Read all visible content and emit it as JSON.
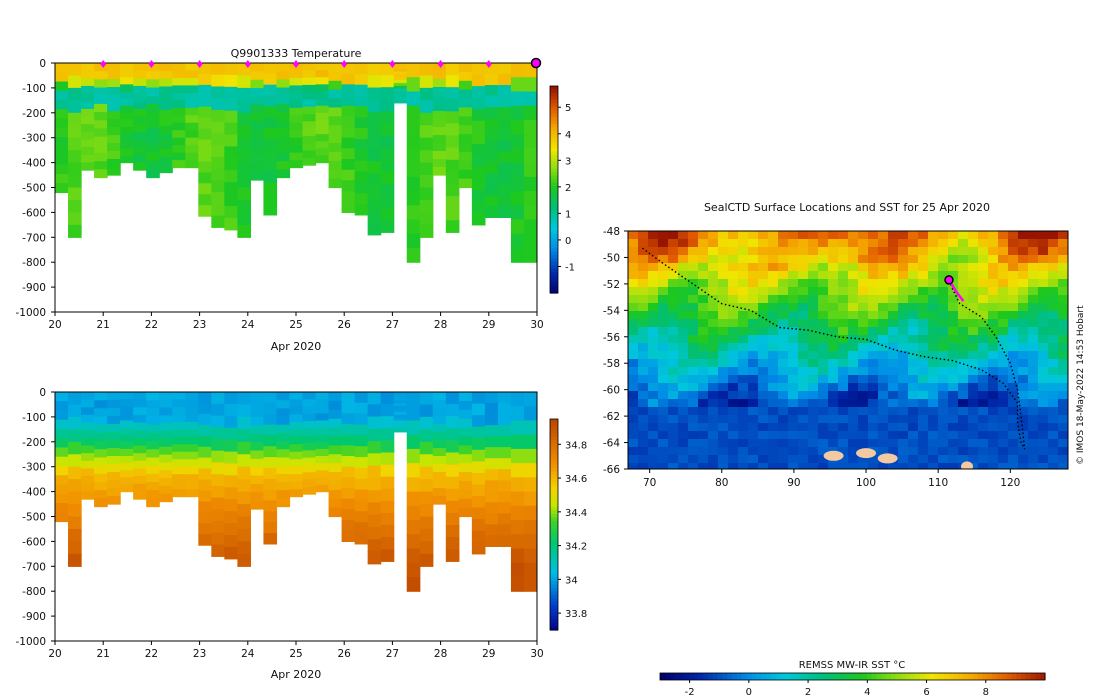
{
  "chart_data": [
    {
      "type": "heatmap",
      "title": "Q9901333  Temperature",
      "xlabel": "Apr 2020",
      "ylabel": "",
      "x_ticks": [
        "20",
        "21",
        "22",
        "23",
        "24",
        "25",
        "26",
        "27",
        "28",
        "29",
        "30"
      ],
      "y_ticks": [
        "0",
        "-100",
        "-200",
        "-300",
        "-400",
        "-500",
        "-600",
        "-700",
        "-800",
        "-900",
        "-1000"
      ],
      "xlim": [
        20,
        30
      ],
      "ylim": [
        -1000,
        0
      ],
      "colorbar_ticks": [
        "5",
        "4",
        "3",
        "2",
        "1",
        "0",
        "-1"
      ],
      "colorbar_range": [
        -2,
        5.8
      ],
      "surface_markers_day": [
        21,
        22,
        23,
        24,
        25,
        26,
        27,
        28,
        29
      ],
      "latest_marker_day": 30,
      "profile_max_depths": [
        -520,
        -700,
        -430,
        -460,
        -450,
        -400,
        -430,
        -460,
        -440,
        -420,
        -420,
        -615,
        -660,
        -670,
        -700,
        -470,
        -610,
        -460,
        -420,
        -410,
        -400,
        -500,
        -600,
        -610,
        -690,
        -680,
        -160,
        -800,
        -700,
        -450,
        -680,
        -500,
        -650,
        -620,
        -620,
        -800,
        -800
      ]
    },
    {
      "type": "heatmap",
      "title": "",
      "xlabel": "Apr 2020",
      "ylabel": "",
      "x_ticks": [
        "20",
        "21",
        "22",
        "23",
        "24",
        "25",
        "26",
        "27",
        "28",
        "29",
        "30"
      ],
      "y_ticks": [
        "0",
        "-100",
        "-200",
        "-300",
        "-400",
        "-500",
        "-600",
        "-700",
        "-800",
        "-900",
        "-1000"
      ],
      "xlim": [
        20,
        30
      ],
      "ylim": [
        -1000,
        0
      ],
      "colorbar_ticks": [
        "34.8",
        "34.6",
        "34.4",
        "34.2",
        "34",
        "33.8"
      ],
      "colorbar_range": [
        33.7,
        34.95
      ]
    },
    {
      "type": "heatmap",
      "title": "SealCTD Surface Locations and SST for 25 Apr 2020",
      "xlabel": "",
      "ylabel": "",
      "x_ticks": [
        "70",
        "80",
        "90",
        "100",
        "110",
        "120"
      ],
      "y_ticks": [
        "-48",
        "-50",
        "-52",
        "-54",
        "-56",
        "-58",
        "-60",
        "-62",
        "-64",
        "-66"
      ],
      "xlim": [
        67,
        128
      ],
      "ylim": [
        -66,
        -48
      ],
      "colorbar_label": "REMSS MW-IR SST °C",
      "colorbar_ticks": [
        "-2",
        "0",
        "2",
        "4",
        "6",
        "8"
      ],
      "colorbar_range": [
        -3,
        10
      ],
      "track_lonlat": [
        [
          69,
          -49.3
        ],
        [
          72,
          -50.5
        ],
        [
          76,
          -52
        ],
        [
          80,
          -53.5
        ],
        [
          84,
          -54
        ],
        [
          88,
          -55.3
        ],
        [
          92,
          -55.5
        ],
        [
          96,
          -56
        ],
        [
          100,
          -56.2
        ],
        [
          104,
          -57
        ],
        [
          108,
          -57.5
        ],
        [
          112,
          -57.8
        ],
        [
          116,
          -58.5
        ],
        [
          119,
          -59.5
        ],
        [
          121,
          -61
        ],
        [
          121,
          -62.5
        ],
        [
          121.5,
          -64
        ],
        [
          122,
          -64.5
        ],
        [
          121.5,
          -62
        ],
        [
          121,
          -60
        ],
        [
          120,
          -58
        ],
        [
          118,
          -56
        ],
        [
          116,
          -54.5
        ],
        [
          113,
          -53.5
        ],
        [
          112,
          -52.4
        ],
        [
          111.5,
          -51.7
        ]
      ],
      "recent_track_lonlat": [
        [
          111.5,
          -51.7
        ],
        [
          112.5,
          -52.6
        ],
        [
          113.5,
          -53.3
        ]
      ],
      "current_position": [
        111.5,
        -51.7
      ]
    }
  ],
  "credit": "© IMOS 18-May-2022 14:53 Hobart"
}
